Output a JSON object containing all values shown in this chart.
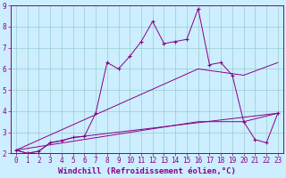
{
  "xlabel": "Windchill (Refroidissement éolien,°C)",
  "ylabel": "",
  "xlim": [
    -0.5,
    23.5
  ],
  "ylim": [
    2,
    9
  ],
  "xticks": [
    0,
    1,
    2,
    3,
    4,
    5,
    6,
    7,
    8,
    9,
    10,
    11,
    12,
    13,
    14,
    15,
    16,
    17,
    18,
    19,
    20,
    21,
    22,
    23
  ],
  "yticks": [
    2,
    3,
    4,
    5,
    6,
    7,
    8,
    9
  ],
  "bg_color": "#cceeff",
  "line_color": "#880088",
  "grid_color": "#99cccc",
  "lines": [
    {
      "x": [
        0,
        1,
        2,
        3,
        4,
        5,
        6,
        7,
        8,
        9,
        10,
        11,
        12,
        13,
        14,
        15,
        16,
        17,
        18,
        19,
        20,
        21,
        22,
        23
      ],
      "y": [
        2.15,
        2.0,
        2.1,
        2.5,
        2.6,
        2.75,
        2.8,
        3.9,
        6.3,
        6.0,
        6.6,
        7.3,
        8.25,
        7.2,
        7.3,
        7.4,
        8.85,
        6.2,
        6.3,
        5.7,
        3.5,
        2.65,
        2.5,
        3.9
      ],
      "marker": "+"
    },
    {
      "x": [
        0,
        1,
        2,
        3,
        4,
        5,
        23
      ],
      "y": [
        2.15,
        2.0,
        2.1,
        2.5,
        2.6,
        2.75,
        3.9
      ],
      "marker": null
    },
    {
      "x": [
        0,
        16,
        20,
        23
      ],
      "y": [
        2.15,
        6.0,
        5.7,
        6.3
      ],
      "marker": null
    },
    {
      "x": [
        0,
        16,
        20,
        23
      ],
      "y": [
        2.15,
        3.5,
        3.5,
        3.9
      ],
      "marker": null
    }
  ],
  "tick_fontsize": 5.5,
  "label_fontsize": 6.5
}
